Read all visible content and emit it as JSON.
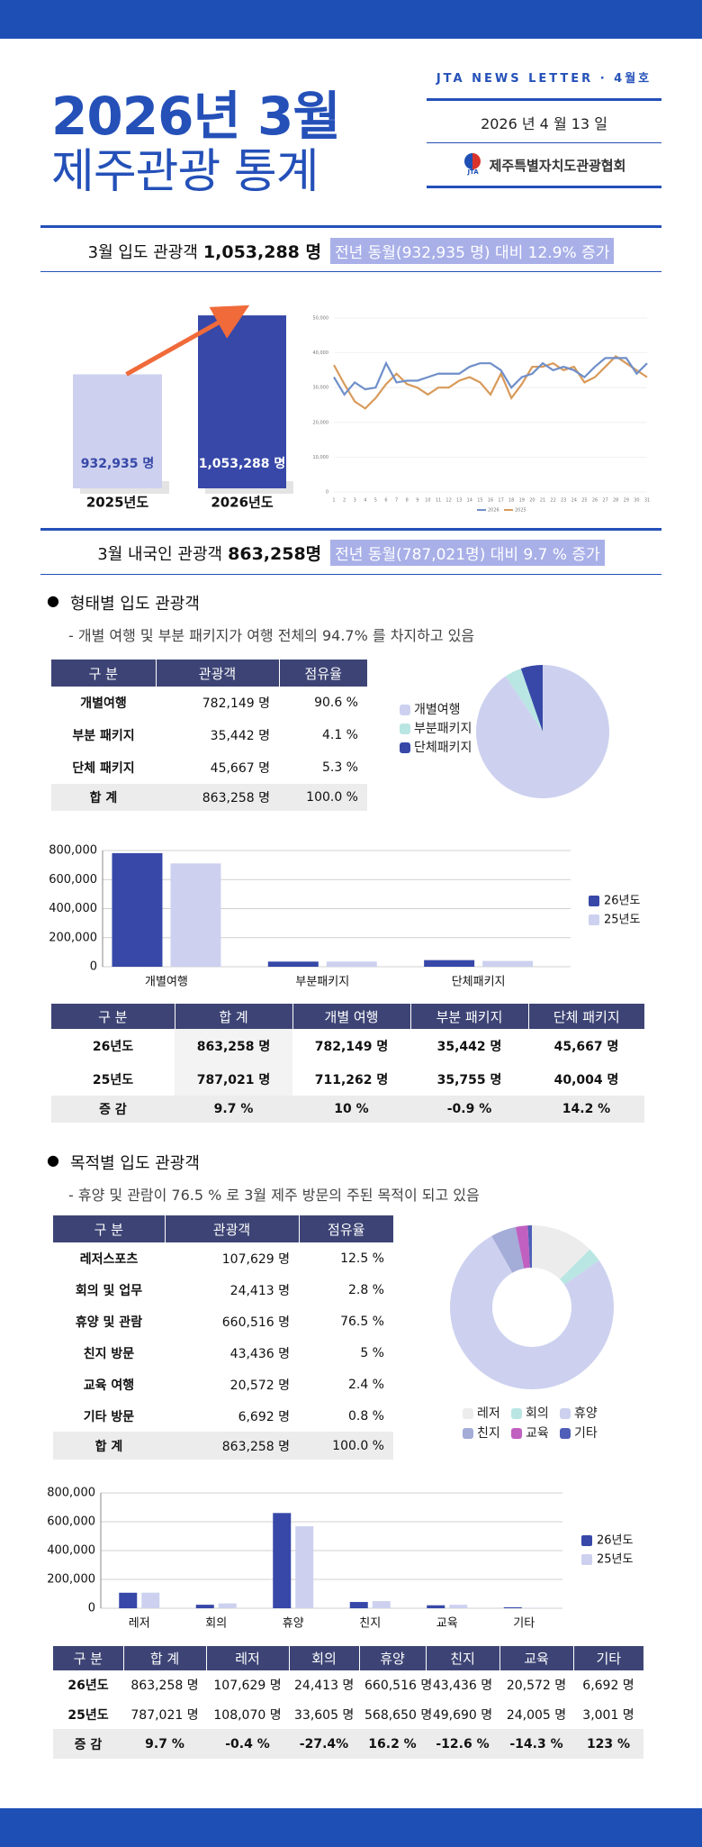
{
  "header": {
    "title": "2026년 3월",
    "subtitle": "제주관광 통계",
    "newsletter": "JTA NEWS LETTER · 4월호",
    "date": "2026 년  4 월  13 일",
    "logo": "JTA",
    "org": "제주특별자치도관광협회"
  },
  "summary": [
    {
      "label": "3월 입도 관광객",
      "value": "1,053,288 명",
      "note": "전년 동월(932,935 명) 대비 12.9% 증가"
    },
    {
      "label": "3월 내국인 관광객",
      "value": "863,258명",
      "note": "전년 동월(787,021명) 대비 9.7 % 증가"
    }
  ],
  "sections": [
    {
      "title": "형태별 입도 관광객",
      "desc": "- 개별 여행 및 부분 패키지가 여행 전체의 94.7% 를 차지하고 있음"
    },
    {
      "title": "목적별 입도 관광객",
      "desc": "- 휴양 및 관람이 76.5 % 로 3월 제주 방문의 주된 목적이 되고 있음"
    }
  ],
  "tables": [
    {
      "columns": [
        "구 분",
        "관광객",
        "점유율"
      ],
      "rows": [
        [
          "개별여행",
          "782,149 명",
          "90.6 %"
        ],
        [
          "부분 패키지",
          "35,442 명",
          "4.1 %"
        ],
        [
          "단체 패키지",
          "45,667 명",
          "5.3 %"
        ],
        [
          "합 계",
          "863,258 명",
          "100.0 %"
        ]
      ]
    },
    {
      "columns": [
        "구 분",
        "합 계",
        "개별 여행",
        "부분 패키지",
        "단체 패키지"
      ],
      "rows": [
        [
          "26년도",
          "863,258 명",
          "782,149 명",
          "35,442 명",
          "45,667 명"
        ],
        [
          "25년도",
          "787,021 명",
          "711,262 명",
          "35,755 명",
          "40,004 명"
        ],
        [
          "증 감",
          "9.7 %",
          "10 %",
          "-0.9 %",
          "14.2 %"
        ]
      ]
    },
    {
      "columns": [
        "구 분",
        "관광객",
        "점유율"
      ],
      "rows": [
        [
          "레저스포츠",
          "107,629 명",
          "12.5 %"
        ],
        [
          "회의 및 업무",
          "24,413 명",
          "2.8 %"
        ],
        [
          "휴양 및 관람",
          "660,516 명",
          "76.5 %"
        ],
        [
          "친지 방문",
          "43,436 명",
          "5 %"
        ],
        [
          "교육 여행",
          "20,572 명",
          "2.4 %"
        ],
        [
          "기타 방문",
          "6,692 명",
          "0.8 %"
        ],
        [
          "합 계",
          "863,258 명",
          "100.0 %"
        ]
      ]
    },
    {
      "columns": [
        "구 분",
        "합 계",
        "레저",
        "회의",
        "휴양",
        "친지",
        "교육",
        "기타"
      ],
      "rows": [
        [
          "26년도",
          "863,258 명",
          "107,629 명",
          "24,413 명",
          "660,516 명",
          "43,436 명",
          "20,572 명",
          "6,692 명"
        ],
        [
          "25년도",
          "787,021 명",
          "108,070 명",
          "33,605 명",
          "568,650 명",
          "49,690 명",
          "24,005 명",
          "3,001 명"
        ],
        [
          "증 감",
          "9.7 %",
          "-0.4 %",
          "-27.4%",
          "16.2 %",
          "-12.6 %",
          "-14.3 %",
          "123 %"
        ]
      ]
    }
  ],
  "chart_data": [
    {
      "type": "bar",
      "categories": [
        "2025년도",
        "2026년도"
      ],
      "values": [
        932935,
        1053288
      ],
      "value_labels": [
        "932,935 명",
        "1,053,288 명"
      ],
      "colors": [
        "#cdd1ef",
        "#3748a8"
      ],
      "ylim": [
        700000,
        1060000
      ],
      "arrow_color": "#f06a3a"
    },
    {
      "type": "line",
      "x": [
        1,
        2,
        3,
        4,
        5,
        6,
        7,
        8,
        9,
        10,
        11,
        12,
        13,
        14,
        15,
        16,
        17,
        18,
        19,
        20,
        21,
        22,
        23,
        24,
        25,
        26,
        27,
        28,
        29,
        30,
        31
      ],
      "series": [
        {
          "name": "2026",
          "color": "#6f8fc9",
          "values": [
            33000,
            28000,
            31500,
            29500,
            30000,
            37000,
            31500,
            32000,
            32000,
            33000,
            34000,
            34000,
            34000,
            36000,
            37000,
            37000,
            35000,
            30000,
            33000,
            34000,
            37000,
            35000,
            36000,
            35000,
            33000,
            36000,
            38500,
            38500,
            38500,
            34000,
            37000
          ]
        },
        {
          "name": "2025",
          "color": "#d89a5a",
          "values": [
            36500,
            31000,
            26000,
            24000,
            27000,
            31000,
            34000,
            31000,
            30000,
            28000,
            30000,
            30000,
            32000,
            33000,
            31500,
            28000,
            34000,
            27000,
            31000,
            36000,
            36000,
            37000,
            35000,
            36000,
            31500,
            33000,
            36000,
            39000,
            37000,
            35000,
            33000
          ]
        }
      ],
      "ylim": [
        0,
        50000
      ],
      "yticks": [
        0,
        {
          "value": 10000,
          "label": "10,000"
        },
        {
          "value": 20000,
          "label": "20,000"
        },
        {
          "value": 30000,
          "label": "30,000"
        },
        {
          "value": 40000,
          "label": "40,000"
        },
        {
          "value": 50000,
          "label": "50,000"
        }
      ],
      "grid": true,
      "legend": "bottom"
    },
    {
      "type": "pie",
      "categories": [
        "개별여행",
        "부분패키지",
        "단체패키지"
      ],
      "values": [
        90.6,
        4.1,
        5.3
      ],
      "colors": [
        "#cdd1ef",
        "#b9e6e2",
        "#3748a8"
      ],
      "legend": "left"
    },
    {
      "type": "bar",
      "categories": [
        "개별여행",
        "부분패키지",
        "단체패키지"
      ],
      "series": [
        {
          "name": "26년도",
          "color": "#3748a8",
          "values": [
            782149,
            35442,
            45667
          ]
        },
        {
          "name": "25년도",
          "color": "#cdd1ef",
          "values": [
            711262,
            35755,
            40004
          ]
        }
      ],
      "ylim": [
        0,
        800000
      ],
      "yticks": [
        0,
        {
          "value": 200000,
          "label": "200,000"
        },
        {
          "value": 400000,
          "label": "400,000"
        },
        {
          "value": 600000,
          "label": "600,000"
        },
        {
          "value": 800000,
          "label": "800,000"
        }
      ],
      "grid": true,
      "legend": "right"
    },
    {
      "type": "donut",
      "categories": [
        "레저",
        "회의",
        "휴양",
        "친지",
        "교육",
        "기타"
      ],
      "values": [
        12.5,
        2.8,
        76.5,
        5,
        2.4,
        0.8
      ],
      "colors": [
        "#ececec",
        "#b9e6e2",
        "#cdd1ef",
        "#a4acd8",
        "#c060c0",
        "#4f5fb8"
      ],
      "legend": "bottom"
    },
    {
      "type": "bar",
      "categories": [
        "레저",
        "회의",
        "휴양",
        "친지",
        "교육",
        "기타"
      ],
      "series": [
        {
          "name": "26년도",
          "color": "#3748a8",
          "values": [
            107629,
            24413,
            660516,
            43436,
            20572,
            6692
          ]
        },
        {
          "name": "25년도",
          "color": "#cdd1ef",
          "values": [
            108070,
            33605,
            568650,
            49690,
            24005,
            3001
          ]
        }
      ],
      "ylim": [
        0,
        800000
      ],
      "yticks": [
        0,
        {
          "value": 200000,
          "label": "200,000"
        },
        {
          "value": 400000,
          "label": "400,000"
        },
        {
          "value": 600000,
          "label": "600,000"
        },
        {
          "value": 800000,
          "label": "800,000"
        }
      ],
      "grid": true,
      "legend": "right"
    }
  ]
}
